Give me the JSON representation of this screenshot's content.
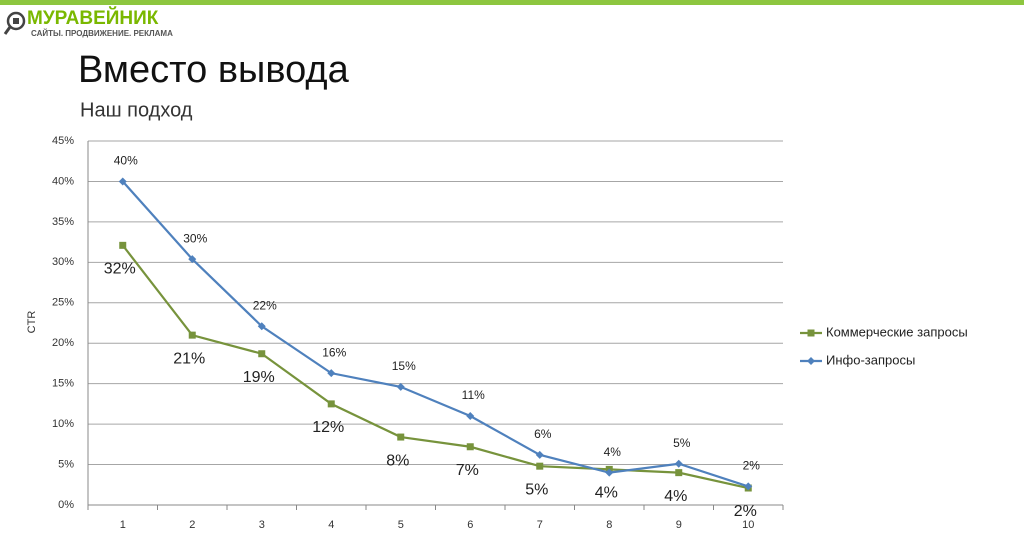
{
  "header": {
    "logo_name": "МУРАВЕЙНИК",
    "logo_tagline": "САЙТЫ. ПРОДВИЖЕНИЕ. РЕКЛАМА"
  },
  "chart_data": {
    "type": "line",
    "title": "Вместо вывода",
    "subtitle": "Наш подход",
    "ylabel": "CTR",
    "categories": [
      "1",
      "2",
      "3",
      "4",
      "5",
      "6",
      "7",
      "8",
      "9",
      "10"
    ],
    "series": [
      {
        "name": "Коммерческие запросы",
        "color": "#77933c",
        "marker": "square",
        "values": [
          32.1,
          21.0,
          18.7,
          12.5,
          8.4,
          7.2,
          4.8,
          4.4,
          4.0,
          2.1
        ],
        "value_labels": [
          "32%",
          "21%",
          "19%",
          "12%",
          "8%",
          "7%",
          "5%",
          "4%",
          "4%",
          "2%"
        ]
      },
      {
        "name": "Инфо-запросы",
        "color": "#4f81bd",
        "marker": "diamond",
        "values": [
          40.0,
          30.4,
          22.1,
          16.3,
          14.6,
          11.0,
          6.2,
          4.0,
          5.1,
          2.3
        ],
        "value_labels": [
          "40%",
          "30%",
          "22%",
          "16%",
          "15%",
          "11%",
          "6%",
          "4%",
          "5%",
          "2%"
        ]
      }
    ],
    "ylim": [
      0,
      45
    ],
    "yticks": [
      {
        "value": 0,
        "label": "0%"
      },
      {
        "value": 5,
        "label": "5%"
      },
      {
        "value": 10,
        "label": "10%"
      },
      {
        "value": 15,
        "label": "15%"
      },
      {
        "value": 20,
        "label": "20%"
      },
      {
        "value": 25,
        "label": "25%"
      },
      {
        "value": 30,
        "label": "30%"
      },
      {
        "value": 35,
        "label": "35%"
      },
      {
        "value": 40,
        "label": "40%"
      },
      {
        "value": 45,
        "label": "45%"
      }
    ],
    "grid": true,
    "legend": "right"
  }
}
